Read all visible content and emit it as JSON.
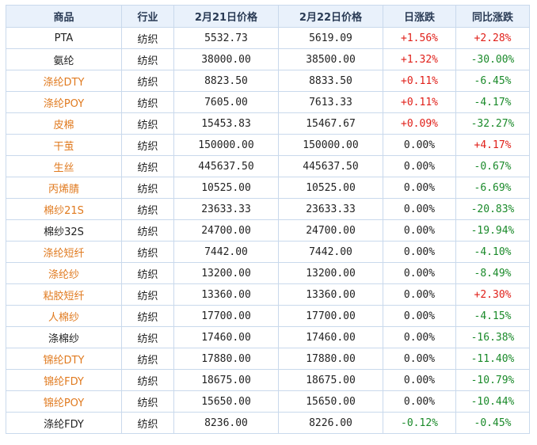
{
  "table": {
    "headers": [
      "商品",
      "行业",
      "2月21日价格",
      "2月22日价格",
      "日涨跌",
      "同比涨跌"
    ],
    "rows": [
      {
        "name": "PTA",
        "name_style": "black",
        "industry": "纺织",
        "price_0221": "5532.73",
        "price_0222": "5619.09",
        "daily": "+1.56%",
        "daily_dir": "pos",
        "yoy": "+2.28%",
        "yoy_dir": "pos"
      },
      {
        "name": "氨纶",
        "name_style": "black",
        "industry": "纺织",
        "price_0221": "38000.00",
        "price_0222": "38500.00",
        "daily": "+1.32%",
        "daily_dir": "pos",
        "yoy": "-30.00%",
        "yoy_dir": "neg"
      },
      {
        "name": "涤纶DTY",
        "name_style": "orange",
        "industry": "纺织",
        "price_0221": "8823.50",
        "price_0222": "8833.50",
        "daily": "+0.11%",
        "daily_dir": "pos",
        "yoy": "-6.45%",
        "yoy_dir": "neg"
      },
      {
        "name": "涤纶POY",
        "name_style": "orange",
        "industry": "纺织",
        "price_0221": "7605.00",
        "price_0222": "7613.33",
        "daily": "+0.11%",
        "daily_dir": "pos",
        "yoy": "-4.17%",
        "yoy_dir": "neg"
      },
      {
        "name": "皮棉",
        "name_style": "orange",
        "industry": "纺织",
        "price_0221": "15453.83",
        "price_0222": "15467.67",
        "daily": "+0.09%",
        "daily_dir": "pos",
        "yoy": "-32.27%",
        "yoy_dir": "neg"
      },
      {
        "name": "干茧",
        "name_style": "orange",
        "industry": "纺织",
        "price_0221": "150000.00",
        "price_0222": "150000.00",
        "daily": "0.00%",
        "daily_dir": "zero",
        "yoy": "+4.17%",
        "yoy_dir": "pos"
      },
      {
        "name": "生丝",
        "name_style": "orange",
        "industry": "纺织",
        "price_0221": "445637.50",
        "price_0222": "445637.50",
        "daily": "0.00%",
        "daily_dir": "zero",
        "yoy": "-0.67%",
        "yoy_dir": "neg"
      },
      {
        "name": "丙烯腈",
        "name_style": "orange",
        "industry": "纺织",
        "price_0221": "10525.00",
        "price_0222": "10525.00",
        "daily": "0.00%",
        "daily_dir": "zero",
        "yoy": "-6.69%",
        "yoy_dir": "neg"
      },
      {
        "name": "棉纱21S",
        "name_style": "orange",
        "industry": "纺织",
        "price_0221": "23633.33",
        "price_0222": "23633.33",
        "daily": "0.00%",
        "daily_dir": "zero",
        "yoy": "-20.83%",
        "yoy_dir": "neg"
      },
      {
        "name": "棉纱32S",
        "name_style": "black",
        "industry": "纺织",
        "price_0221": "24700.00",
        "price_0222": "24700.00",
        "daily": "0.00%",
        "daily_dir": "zero",
        "yoy": "-19.94%",
        "yoy_dir": "neg"
      },
      {
        "name": "涤纶短纤",
        "name_style": "orange",
        "industry": "纺织",
        "price_0221": "7442.00",
        "price_0222": "7442.00",
        "daily": "0.00%",
        "daily_dir": "zero",
        "yoy": "-4.10%",
        "yoy_dir": "neg"
      },
      {
        "name": "涤纶纱",
        "name_style": "orange",
        "industry": "纺织",
        "price_0221": "13200.00",
        "price_0222": "13200.00",
        "daily": "0.00%",
        "daily_dir": "zero",
        "yoy": "-8.49%",
        "yoy_dir": "neg"
      },
      {
        "name": "粘胶短纤",
        "name_style": "orange",
        "industry": "纺织",
        "price_0221": "13360.00",
        "price_0222": "13360.00",
        "daily": "0.00%",
        "daily_dir": "zero",
        "yoy": "+2.30%",
        "yoy_dir": "pos"
      },
      {
        "name": "人棉纱",
        "name_style": "orange",
        "industry": "纺织",
        "price_0221": "17700.00",
        "price_0222": "17700.00",
        "daily": "0.00%",
        "daily_dir": "zero",
        "yoy": "-4.15%",
        "yoy_dir": "neg"
      },
      {
        "name": "涤棉纱",
        "name_style": "black",
        "industry": "纺织",
        "price_0221": "17460.00",
        "price_0222": "17460.00",
        "daily": "0.00%",
        "daily_dir": "zero",
        "yoy": "-16.38%",
        "yoy_dir": "neg"
      },
      {
        "name": "锦纶DTY",
        "name_style": "orange",
        "industry": "纺织",
        "price_0221": "17880.00",
        "price_0222": "17880.00",
        "daily": "0.00%",
        "daily_dir": "zero",
        "yoy": "-11.40%",
        "yoy_dir": "neg"
      },
      {
        "name": "锦纶FDY",
        "name_style": "orange",
        "industry": "纺织",
        "price_0221": "18675.00",
        "price_0222": "18675.00",
        "daily": "0.00%",
        "daily_dir": "zero",
        "yoy": "-10.79%",
        "yoy_dir": "neg"
      },
      {
        "name": "锦纶POY",
        "name_style": "orange",
        "industry": "纺织",
        "price_0221": "15650.00",
        "price_0222": "15650.00",
        "daily": "0.00%",
        "daily_dir": "zero",
        "yoy": "-10.44%",
        "yoy_dir": "neg"
      },
      {
        "name": "涤纶FDY",
        "name_style": "black",
        "industry": "纺织",
        "price_0221": "8236.00",
        "price_0222": "8226.00",
        "daily": "-0.12%",
        "daily_dir": "neg",
        "yoy": "-0.45%",
        "yoy_dir": "neg"
      }
    ]
  },
  "colors": {
    "header_bg": "#e9f1fb",
    "border": "#c9d9ec",
    "link_orange": "#e07a1f",
    "up_red": "#e0201a",
    "down_green": "#1a8a2a"
  }
}
